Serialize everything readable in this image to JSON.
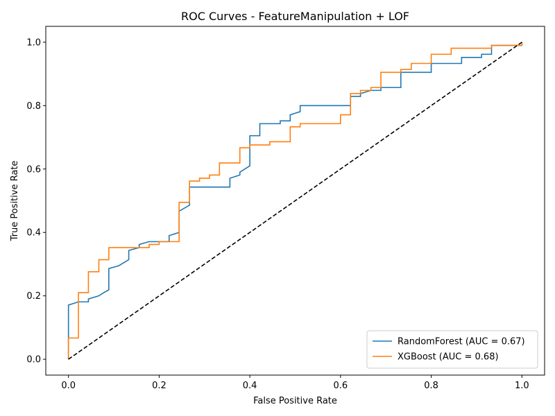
{
  "chart_data": {
    "type": "line",
    "title": "ROC Curves - FeatureManipulation + LOF",
    "xlabel": "False Positive Rate",
    "ylabel": "True Positive Rate",
    "xlim": [
      -0.05,
      1.05
    ],
    "ylim": [
      -0.05,
      1.05
    ],
    "xticks": [
      0.0,
      0.2,
      0.4,
      0.6,
      0.8,
      1.0
    ],
    "yticks": [
      0.0,
      0.2,
      0.4,
      0.6,
      0.8,
      1.0
    ],
    "xtick_labels": [
      "0.0",
      "0.2",
      "0.4",
      "0.6",
      "0.8",
      "1.0"
    ],
    "ytick_labels": [
      "0.0",
      "0.2",
      "0.4",
      "0.6",
      "0.8",
      "1.0"
    ],
    "grid": false,
    "legend_position": "lower-right",
    "series": [
      {
        "name": "RandomForest (AUC = 0.67)",
        "color": "#1f77b4",
        "style": "solid",
        "points": [
          [
            0.0,
            0.0
          ],
          [
            0.0,
            0.171
          ],
          [
            0.022,
            0.181
          ],
          [
            0.044,
            0.181
          ],
          [
            0.044,
            0.19
          ],
          [
            0.067,
            0.2
          ],
          [
            0.078,
            0.21
          ],
          [
            0.089,
            0.219
          ],
          [
            0.089,
            0.286
          ],
          [
            0.111,
            0.295
          ],
          [
            0.133,
            0.314
          ],
          [
            0.133,
            0.343
          ],
          [
            0.156,
            0.352
          ],
          [
            0.156,
            0.362
          ],
          [
            0.178,
            0.371
          ],
          [
            0.222,
            0.371
          ],
          [
            0.222,
            0.39
          ],
          [
            0.244,
            0.4
          ],
          [
            0.244,
            0.467
          ],
          [
            0.267,
            0.486
          ],
          [
            0.267,
            0.543
          ],
          [
            0.356,
            0.543
          ],
          [
            0.356,
            0.571
          ],
          [
            0.378,
            0.581
          ],
          [
            0.378,
            0.59
          ],
          [
            0.4,
            0.61
          ],
          [
            0.4,
            0.705
          ],
          [
            0.422,
            0.705
          ],
          [
            0.422,
            0.743
          ],
          [
            0.467,
            0.743
          ],
          [
            0.467,
            0.752
          ],
          [
            0.489,
            0.752
          ],
          [
            0.489,
            0.771
          ],
          [
            0.511,
            0.781
          ],
          [
            0.511,
            0.8
          ],
          [
            0.622,
            0.8
          ],
          [
            0.622,
            0.829
          ],
          [
            0.644,
            0.829
          ],
          [
            0.644,
            0.838
          ],
          [
            0.667,
            0.848
          ],
          [
            0.689,
            0.848
          ],
          [
            0.689,
            0.857
          ],
          [
            0.733,
            0.857
          ],
          [
            0.733,
            0.905
          ],
          [
            0.8,
            0.905
          ],
          [
            0.8,
            0.933
          ],
          [
            0.867,
            0.933
          ],
          [
            0.867,
            0.952
          ],
          [
            0.911,
            0.952
          ],
          [
            0.911,
            0.962
          ],
          [
            0.933,
            0.962
          ],
          [
            0.933,
            0.99
          ],
          [
            1.0,
            0.99
          ],
          [
            1.0,
            1.0
          ]
        ]
      },
      {
        "name": "XGBoost (AUC = 0.68)",
        "color": "#ff7f0e",
        "style": "solid",
        "points": [
          [
            0.0,
            0.0
          ],
          [
            0.0,
            0.067
          ],
          [
            0.022,
            0.067
          ],
          [
            0.022,
            0.21
          ],
          [
            0.044,
            0.21
          ],
          [
            0.044,
            0.276
          ],
          [
            0.067,
            0.276
          ],
          [
            0.067,
            0.314
          ],
          [
            0.089,
            0.314
          ],
          [
            0.089,
            0.352
          ],
          [
            0.178,
            0.352
          ],
          [
            0.178,
            0.362
          ],
          [
            0.2,
            0.362
          ],
          [
            0.2,
            0.371
          ],
          [
            0.244,
            0.371
          ],
          [
            0.244,
            0.495
          ],
          [
            0.267,
            0.495
          ],
          [
            0.267,
            0.562
          ],
          [
            0.289,
            0.562
          ],
          [
            0.289,
            0.571
          ],
          [
            0.311,
            0.571
          ],
          [
            0.311,
            0.581
          ],
          [
            0.333,
            0.581
          ],
          [
            0.333,
            0.619
          ],
          [
            0.378,
            0.619
          ],
          [
            0.378,
            0.667
          ],
          [
            0.4,
            0.667
          ],
          [
            0.4,
            0.676
          ],
          [
            0.444,
            0.676
          ],
          [
            0.444,
            0.686
          ],
          [
            0.489,
            0.686
          ],
          [
            0.489,
            0.733
          ],
          [
            0.511,
            0.733
          ],
          [
            0.511,
            0.743
          ],
          [
            0.6,
            0.743
          ],
          [
            0.6,
            0.771
          ],
          [
            0.622,
            0.771
          ],
          [
            0.622,
            0.838
          ],
          [
            0.644,
            0.838
          ],
          [
            0.644,
            0.848
          ],
          [
            0.667,
            0.848
          ],
          [
            0.667,
            0.857
          ],
          [
            0.689,
            0.857
          ],
          [
            0.689,
            0.905
          ],
          [
            0.733,
            0.905
          ],
          [
            0.733,
            0.914
          ],
          [
            0.756,
            0.914
          ],
          [
            0.756,
            0.933
          ],
          [
            0.8,
            0.933
          ],
          [
            0.8,
            0.962
          ],
          [
            0.844,
            0.962
          ],
          [
            0.844,
            0.981
          ],
          [
            0.933,
            0.981
          ],
          [
            0.933,
            0.99
          ],
          [
            1.0,
            0.99
          ],
          [
            1.0,
            1.0
          ]
        ]
      },
      {
        "name": "",
        "color": "#000000",
        "style": "dashed",
        "in_legend": false,
        "points": [
          [
            0.0,
            0.0
          ],
          [
            1.0,
            1.0
          ]
        ]
      }
    ]
  }
}
